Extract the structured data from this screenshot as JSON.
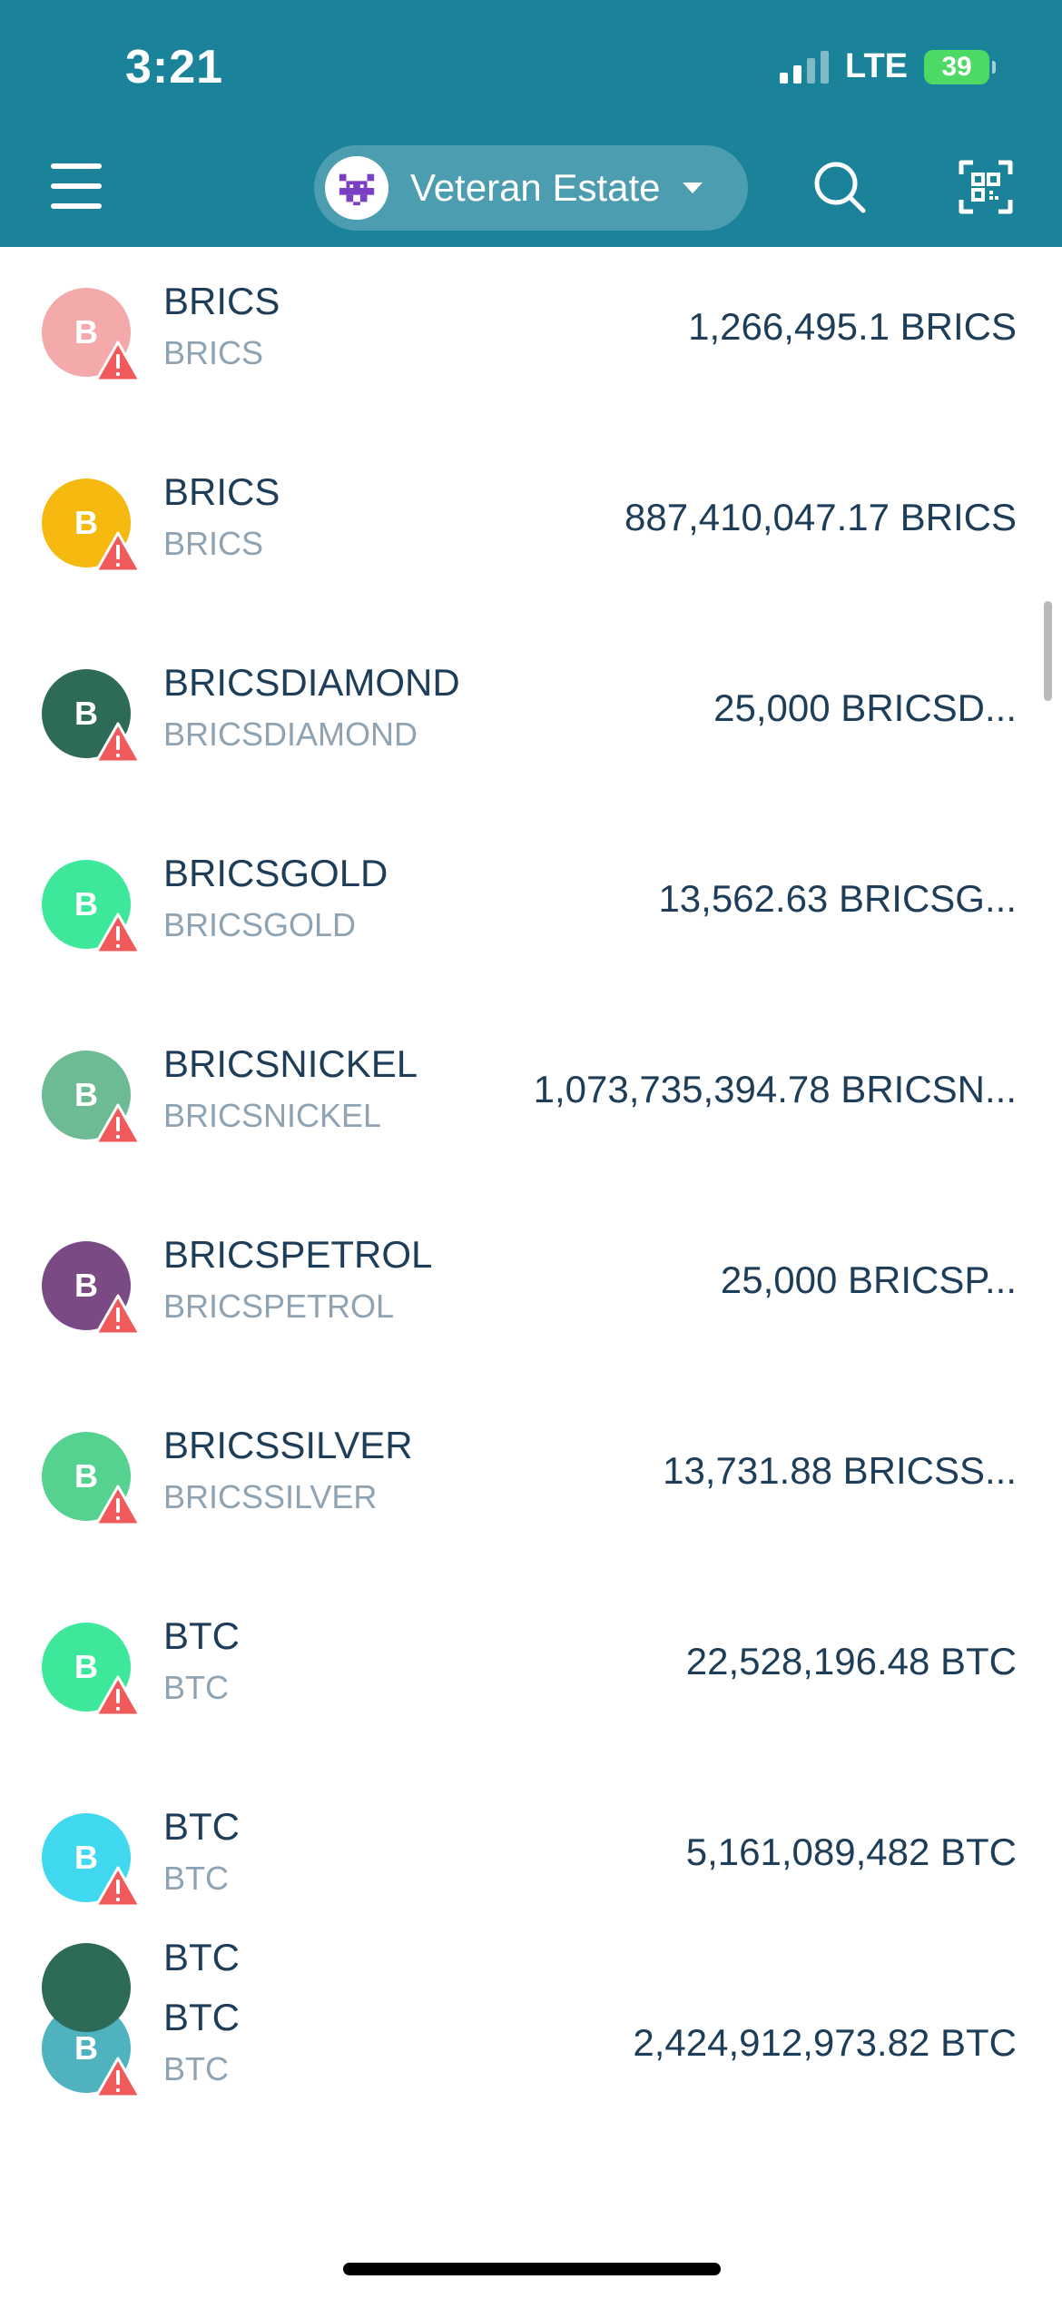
{
  "status_bar": {
    "time": "3:21",
    "network": "LTE",
    "battery": "39"
  },
  "header": {
    "account_name": "Veteran Estate",
    "menu_icon": "menu-icon",
    "search_icon": "search-icon",
    "scan_icon": "qr-scan-icon",
    "background_color": "#1a8299"
  },
  "tokens": [
    {
      "letter": "B",
      "name": "BRICS",
      "symbol": "BRICS",
      "balance": "1,266,495.1 BRICS",
      "color": "#f4a9ab"
    },
    {
      "letter": "B",
      "name": "BRICS",
      "symbol": "BRICS",
      "balance": "887,410,047.17 BRICS",
      "color": "#f6b90f"
    },
    {
      "letter": "B",
      "name": "BRICSDIAMOND",
      "symbol": "BRICSDIAMOND",
      "balance": "25,000 BRICSD...",
      "color": "#2d6a57"
    },
    {
      "letter": "B",
      "name": "BRICSGOLD",
      "symbol": "BRICSGOLD",
      "balance": "13,562.63 BRICSG...",
      "color": "#3ee89a"
    },
    {
      "letter": "B",
      "name": "BRICSNICKEL",
      "symbol": "BRICSNICKEL",
      "balance": "1,073,735,394.78 BRICSN...",
      "color": "#6dbb95"
    },
    {
      "letter": "B",
      "name": "BRICSPETROL",
      "symbol": "BRICSPETROL",
      "balance": "25,000 BRICSP...",
      "color": "#7a4a85"
    },
    {
      "letter": "B",
      "name": "BRICSSILVER",
      "symbol": "BRICSSILVER",
      "balance": "13,731.88 BRICSS...",
      "color": "#55d190"
    },
    {
      "letter": "B",
      "name": "BTC",
      "symbol": "BTC",
      "balance": "22,528,196.48 BTC",
      "color": "#3ee89a"
    },
    {
      "letter": "B",
      "name": "BTC",
      "symbol": "BTC",
      "balance": "5,161,089,482 BTC",
      "color": "#3fd8ee"
    },
    {
      "letter": "B",
      "name": "BTC",
      "symbol": "BTC",
      "balance": "2,424,912,973.82 BTC",
      "color": "#4fb3bf"
    }
  ],
  "partial_row": {
    "name": "BTC"
  },
  "warning_icon": "warning-triangle-icon"
}
